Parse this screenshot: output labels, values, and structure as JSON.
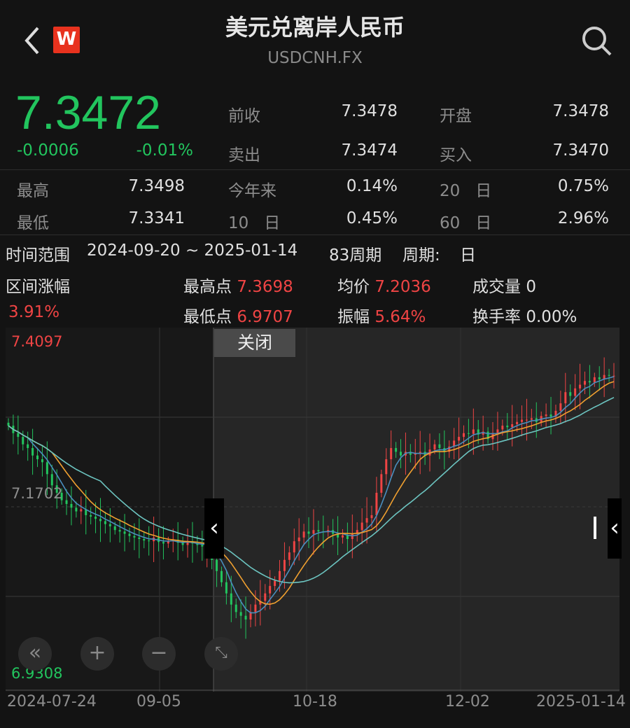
{
  "header": {
    "title": "美元兑离岸人民币",
    "symbol": "USDCNH.FX",
    "logo": "W",
    "icons": [
      "chevron-left-icon",
      "search-icon"
    ]
  },
  "quote": {
    "price": "7.3472",
    "change": "-0.0006",
    "change_pct": "-0.01%",
    "fields": [
      {
        "label": "前收",
        "value": "7.3478"
      },
      {
        "label": "开盘",
        "value": "7.3478"
      },
      {
        "label": "卖出",
        "value": "7.3474"
      },
      {
        "label": "买入",
        "value": "7.3470"
      }
    ]
  },
  "stats": [
    {
      "label": "最高",
      "value": "7.3498"
    },
    {
      "label": "今年来",
      "value": "0.14%"
    },
    {
      "label_num": "20",
      "label": "日",
      "value": "0.75%"
    },
    {
      "label": "最低",
      "value": "7.3341"
    },
    {
      "label_num": "10",
      "label": "日",
      "value": "0.45%"
    },
    {
      "label_num": "60",
      "label": "日",
      "value": "2.96%"
    }
  ],
  "range": {
    "label": "时间范围",
    "value": "2024-09-20 ~ 2025-01-14",
    "periods": "83周期",
    "period_label": "周期:",
    "period_value": "日",
    "change_label": "区间涨幅",
    "change_value": "3.91%",
    "high_label": "最高点",
    "high_value": "7.3698",
    "low_label": "最低点",
    "low_value": "6.9707",
    "avg_label": "均价",
    "avg_value": "7.2036",
    "amp_label": "振幅",
    "amp_value": "5.64%",
    "vol_label": "成交量",
    "vol_value": "0",
    "turn_label": "换手率",
    "turn_value": "0.00%"
  },
  "chart_controls": {
    "close_label": "关闭"
  },
  "colors": {
    "up": "#ef4444",
    "down": "#22c55e",
    "ma5": "#4a8fbf",
    "ma10": "#f0a030",
    "ma20": "#6cc4c0"
  },
  "chart_data": {
    "type": "candlestick",
    "y_max_label": "7.4097",
    "y_mid_label": "7.1702",
    "y_min_label": "6.9308",
    "ylim": [
      6.9308,
      7.4097
    ],
    "x_ticks": [
      "2024-07-24",
      "09-05",
      "10-18",
      "12-02",
      "2025-01-14"
    ],
    "moving_averages": [
      "MA5",
      "MA10",
      "MA20"
    ],
    "close": [
      7.28,
      7.27,
      7.265,
      7.255,
      7.25,
      7.24,
      7.235,
      7.231,
      7.215,
      7.2,
      7.19,
      7.18,
      7.175,
      7.17,
      7.165,
      7.168,
      7.16,
      7.158,
      7.155,
      7.152,
      7.148,
      7.145,
      7.14,
      7.138,
      7.135,
      7.132,
      7.13,
      7.128,
      7.126,
      7.125,
      7.13,
      7.124,
      7.122,
      7.125,
      7.127,
      7.123,
      7.12,
      7.125,
      7.122,
      7.12,
      7.118,
      7.119,
      7.1,
      7.085,
      7.07,
      7.055,
      7.04,
      7.03,
      7.025,
      7.02,
      7.03,
      7.04,
      7.045,
      7.055,
      7.065,
      7.072,
      7.085,
      7.1,
      7.11,
      7.125,
      7.13,
      7.138,
      7.135,
      7.14,
      7.138,
      7.137,
      7.14,
      7.135,
      7.13,
      7.133,
      7.128,
      7.135,
      7.14,
      7.15,
      7.156,
      7.16,
      7.19,
      7.215,
      7.235,
      7.25,
      7.245,
      7.24,
      7.245,
      7.241,
      7.243,
      7.245,
      7.24,
      7.248,
      7.255,
      7.25,
      7.245,
      7.252,
      7.26,
      7.265,
      7.27,
      7.269,
      7.275,
      7.268,
      7.272,
      7.262,
      7.27,
      7.275,
      7.28,
      7.278,
      7.282,
      7.285,
      7.288,
      7.288,
      7.29,
      7.285,
      7.293,
      7.295,
      7.292,
      7.3,
      7.31,
      7.325,
      7.32,
      7.33,
      7.335,
      7.34,
      7.338,
      7.345,
      7.342,
      7.348,
      7.347,
      7.347
    ]
  }
}
